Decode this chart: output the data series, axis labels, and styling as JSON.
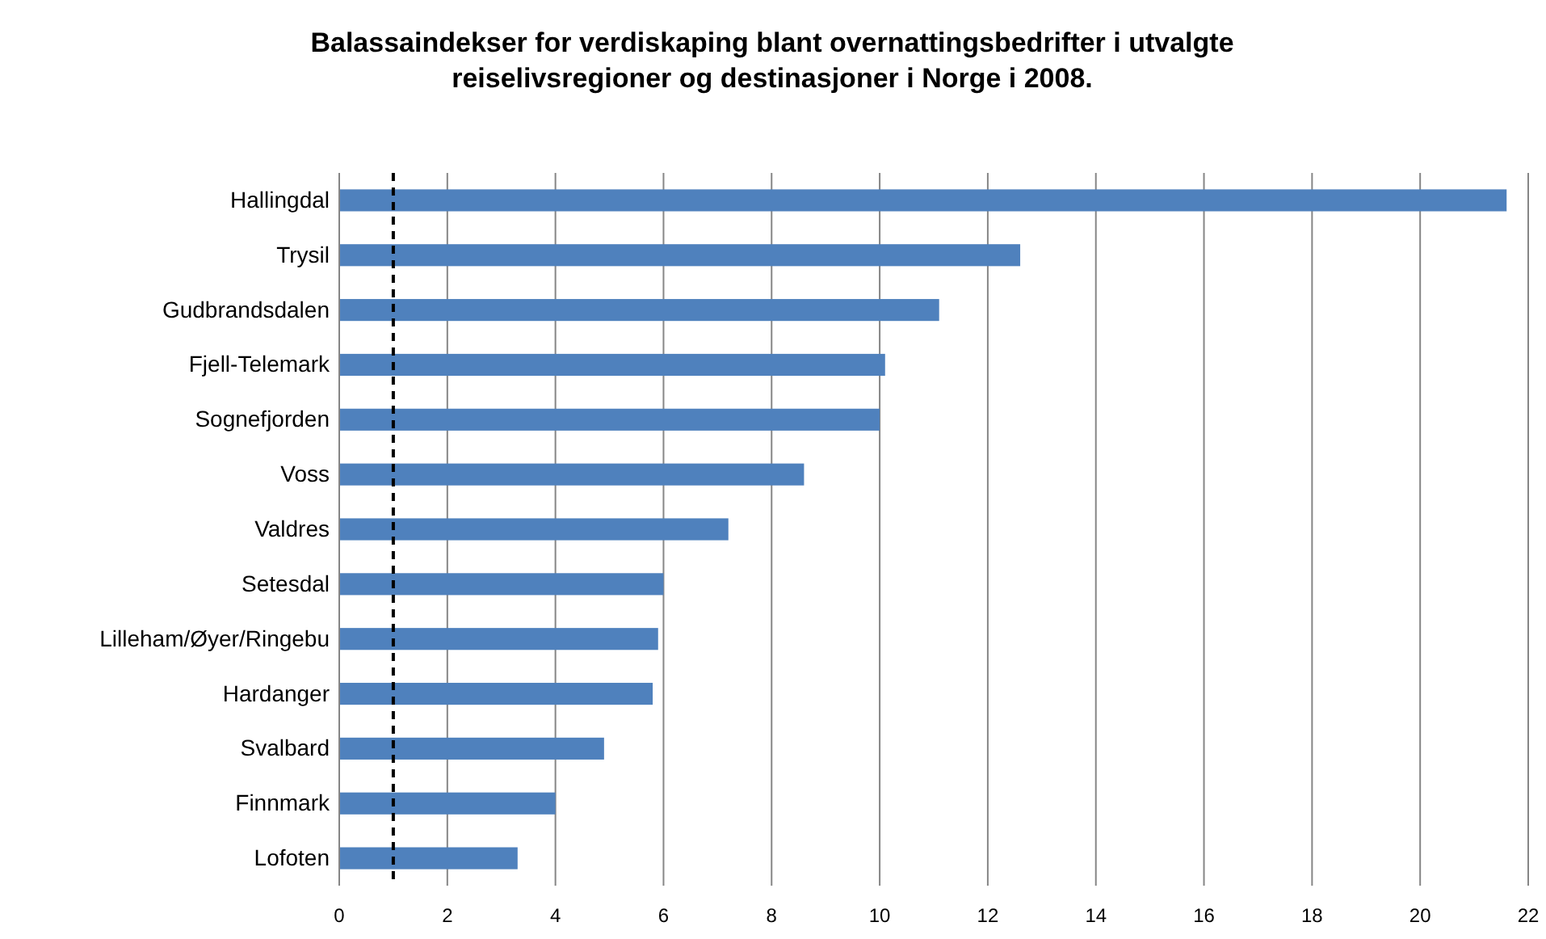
{
  "chart_data": {
    "type": "bar",
    "orientation": "horizontal",
    "title": "Balassaindekser for verdiskaping blant overnattingsbedrifter i utvalgte reiselivsregioner og destinasjoner i Norge i 2008.",
    "categories": [
      "Hallingdal",
      "Trysil",
      "Gudbrandsdalen",
      "Fjell-Telemark",
      "Sognefjorden",
      "Voss",
      "Valdres",
      "Setesdal",
      "Lilleham/Øyer/Ringebu",
      "Hardanger",
      "Svalbard",
      "Finnmark",
      "Lofoten"
    ],
    "values": [
      21.6,
      12.6,
      11.1,
      10.1,
      10.0,
      8.6,
      7.2,
      6.0,
      5.9,
      5.8,
      4.9,
      4.0,
      3.3
    ],
    "color": "#4f81bd",
    "xlim": [
      0,
      22
    ],
    "xticks": [
      0,
      2,
      4,
      6,
      8,
      10,
      12,
      14,
      16,
      18,
      20,
      22
    ],
    "grid": "x",
    "ref_lines": [
      {
        "axis": "x",
        "value": 1,
        "color": "#000000",
        "line_style": "dashed"
      }
    ]
  }
}
